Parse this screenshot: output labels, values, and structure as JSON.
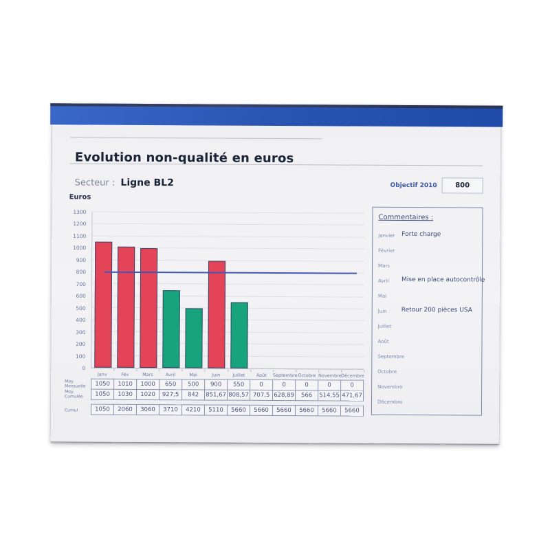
{
  "page": {
    "title": "Evolution non-qualité en euros",
    "secteur_label": "Secteur :",
    "secteur_value": "Ligne BL2",
    "objectif_label": "Objectif 2010",
    "objectif_value": "800",
    "euros_label": "Euros"
  },
  "chart_data": {
    "type": "bar",
    "title": "Evolution non-qualité en euros",
    "ylabel": "Euros",
    "xlabel": "",
    "ylim": [
      0,
      1300
    ],
    "ytick_step": 100,
    "grid": true,
    "legend": "none",
    "categories": [
      "Janv",
      "Fév",
      "Mars",
      "Avril",
      "Mai",
      "Juin",
      "Juillet",
      "Août",
      "Septembre",
      "Octobre",
      "Novembre",
      "Décembre"
    ],
    "values": [
      1050,
      1010,
      1000,
      650,
      500,
      900,
      550,
      null,
      null,
      null,
      null,
      null
    ],
    "bar_colors": [
      "red",
      "red",
      "red",
      "green",
      "green",
      "red",
      "green",
      null,
      null,
      null,
      null,
      null
    ],
    "objective_line": {
      "label": "Objectif 2010",
      "value": 800
    }
  },
  "table": {
    "rows": [
      {
        "label_line1": "Moy.",
        "label_line2": "Mensuelle",
        "values": [
          "1050",
          "1010",
          "1000",
          "650",
          "500",
          "900",
          "550",
          "0",
          "0",
          "0",
          "0",
          "0"
        ]
      },
      {
        "label_line1": "Moy.",
        "label_line2": "Cumulée",
        "values": [
          "1050",
          "1030",
          "1020",
          "927,5",
          "842",
          "851,67",
          "808,57",
          "707,5",
          "628,89",
          "566",
          "514,55",
          "471,67"
        ]
      },
      {
        "label_line1": "Cumul",
        "label_line2": "",
        "values": [
          "1050",
          "2060",
          "3060",
          "3710",
          "4210",
          "5110",
          "5660",
          "5660",
          "5660",
          "5660",
          "5660",
          "5660"
        ]
      }
    ]
  },
  "comments": {
    "title": "Commentaires :",
    "items": [
      {
        "month": "Janvier",
        "text": "Forte charge"
      },
      {
        "month": "Février",
        "text": ""
      },
      {
        "month": "Mars",
        "text": ""
      },
      {
        "month": "Avril",
        "text": "Mise en place autocontrôle"
      },
      {
        "month": "Mai",
        "text": ""
      },
      {
        "month": "Juin",
        "text": "Retour 200 pièces USA"
      },
      {
        "month": "Juillet",
        "text": ""
      },
      {
        "month": "Août",
        "text": ""
      },
      {
        "month": "Septembre",
        "text": ""
      },
      {
        "month": "Octobre",
        "text": ""
      },
      {
        "month": "Novembre",
        "text": ""
      },
      {
        "month": "Décembre",
        "text": ""
      }
    ]
  },
  "colors": {
    "band_blue": "#2a54b2",
    "bar_red": "#e34458",
    "bar_green": "#17a47c",
    "objective_line": "#4156b8",
    "accent_blue_text": "#3d5aa8",
    "title_text": "#1a2238"
  }
}
